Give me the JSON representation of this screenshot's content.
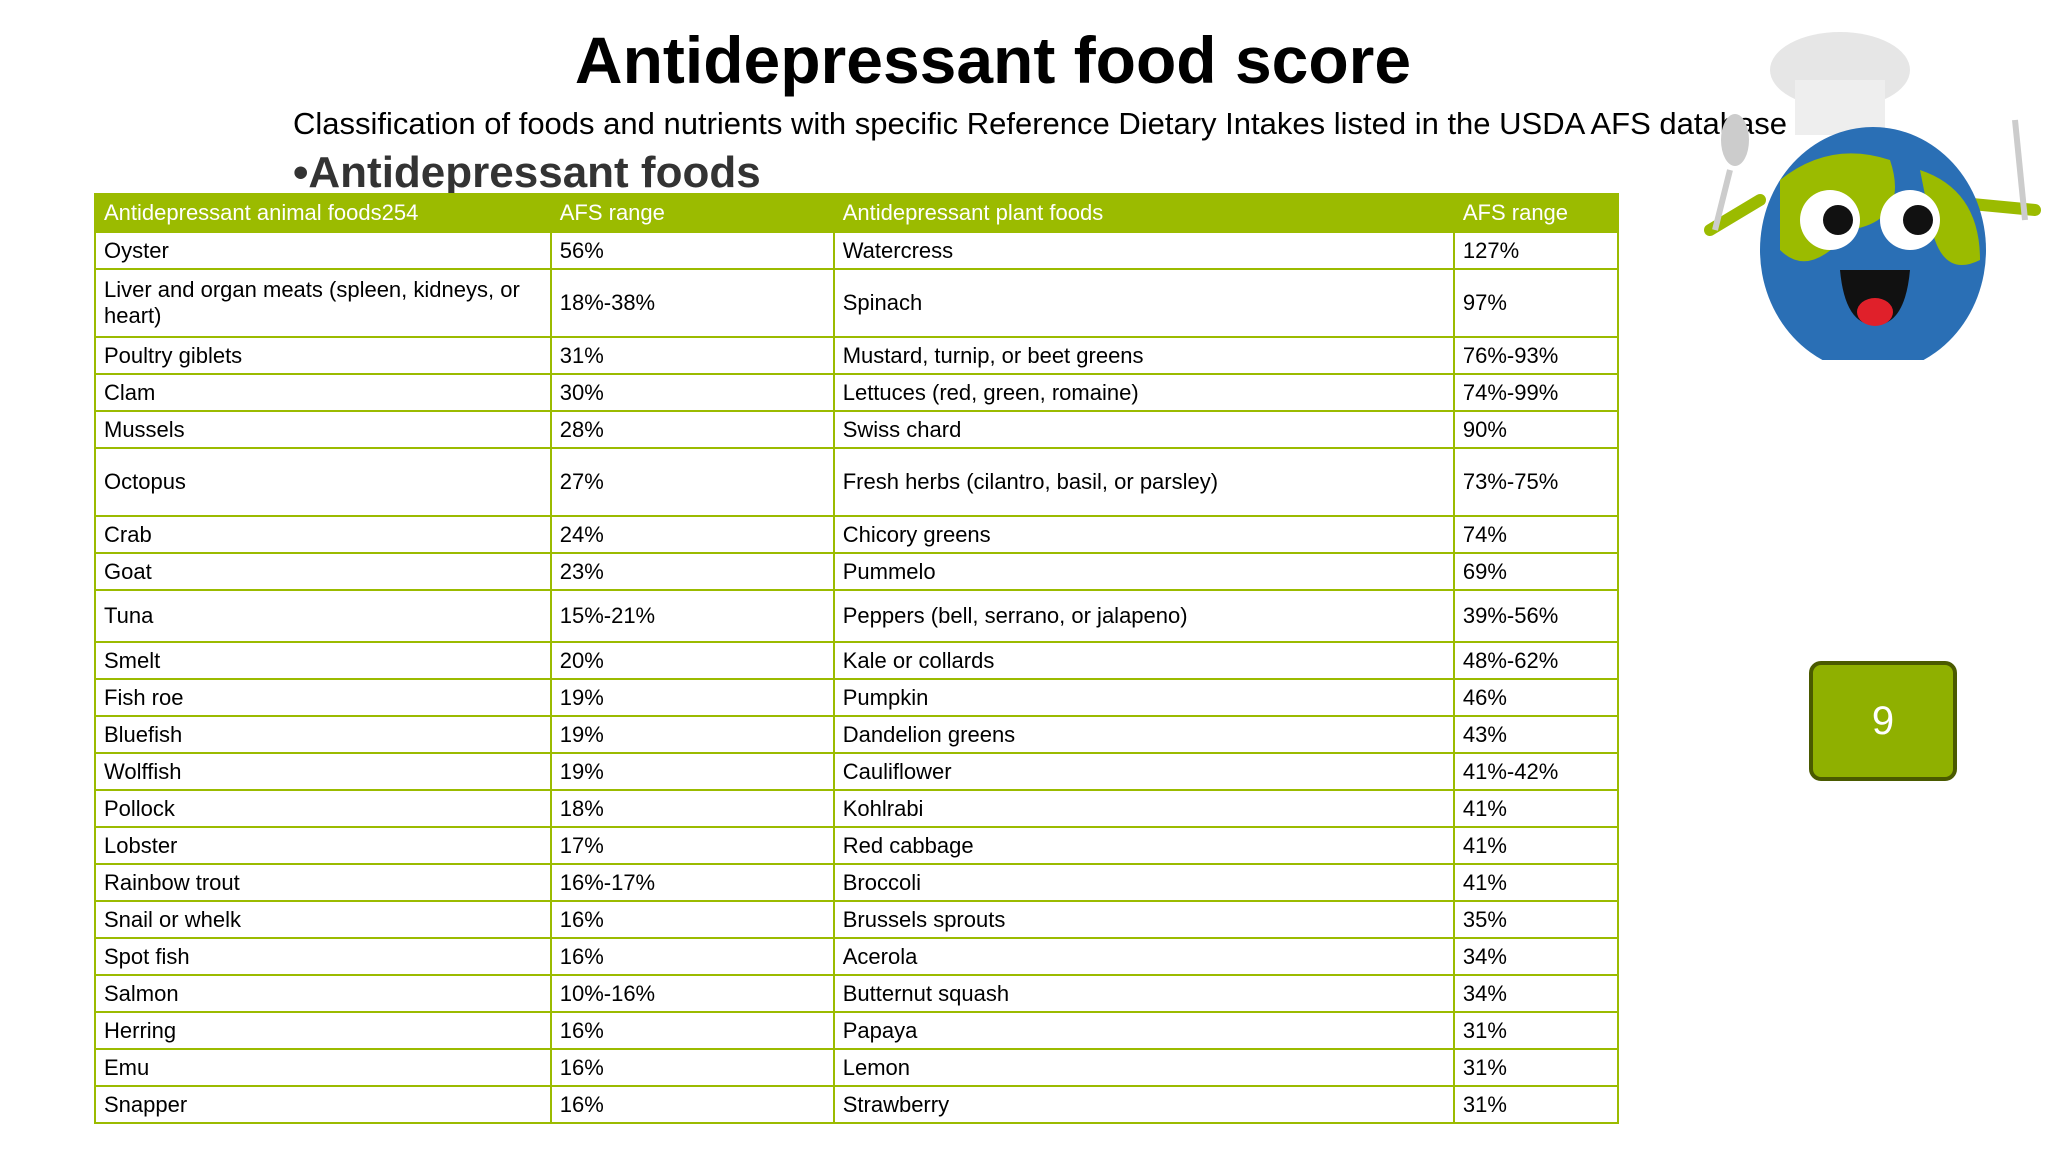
{
  "header": {
    "title": "Antidepressant food score",
    "subtitle": "Classification of foods and nutrients with specific Reference Dietary Intakes listed in the USDA AFS database",
    "bullet": "•Antidepressant foods"
  },
  "table": {
    "columns": [
      "Antidepressant animal foods254",
      "AFS range",
      "Antidepressant plant foods",
      "AFS range"
    ],
    "rows": [
      [
        "Oyster",
        "56%",
        "Watercress",
        "127%"
      ],
      [
        "Liver and organ meats (spleen, kidneys, or heart)",
        "18%-38%",
        "Spinach",
        "97%"
      ],
      [
        "Poultry giblets",
        "31%",
        "Mustard, turnip, or beet greens",
        "76%-93%"
      ],
      [
        "Clam",
        "30%",
        "Lettuces (red, green, romaine)",
        "74%-99%"
      ],
      [
        "Mussels",
        "28%",
        "Swiss chard",
        "90%"
      ],
      [
        "Octopus",
        "27%",
        "Fresh herbs (cilantro, basil, or parsley)",
        "73%-75%"
      ],
      [
        "Crab",
        "24%",
        "Chicory greens",
        "74%"
      ],
      [
        "Goat",
        "23%",
        "Pummelo",
        "69%"
      ],
      [
        "Tuna",
        "15%-21%",
        "Peppers (bell, serrano, or jalapeno)",
        "39%-56%"
      ],
      [
        "Smelt",
        "20%",
        "Kale or collards",
        "48%-62%"
      ],
      [
        "Fish roe",
        "19%",
        "Pumpkin",
        "46%"
      ],
      [
        "Bluefish",
        "19%",
        "Dandelion greens",
        "43%"
      ],
      [
        "Wolffish",
        "19%",
        "Cauliflower",
        "41%-42%"
      ],
      [
        "Pollock",
        "18%",
        "Kohlrabi",
        "41%"
      ],
      [
        "Lobster",
        "17%",
        "Red cabbage",
        "41%"
      ],
      [
        "Rainbow trout",
        "16%-17%",
        "Broccoli",
        "41%"
      ],
      [
        "Snail or whelk",
        "16%",
        "Brussels sprouts",
        "35%"
      ],
      [
        "Spot fish",
        "16%",
        "Acerola",
        "34%"
      ],
      [
        "Salmon",
        "10%-16%",
        "Butternut squash",
        "34%"
      ],
      [
        "Herring",
        "16%",
        "Papaya",
        "31%"
      ],
      [
        "Emu",
        "16%",
        "Lemon",
        "31%"
      ],
      [
        "Snapper",
        "16%",
        "Strawberry",
        "31%"
      ]
    ]
  },
  "page_number": "9"
}
